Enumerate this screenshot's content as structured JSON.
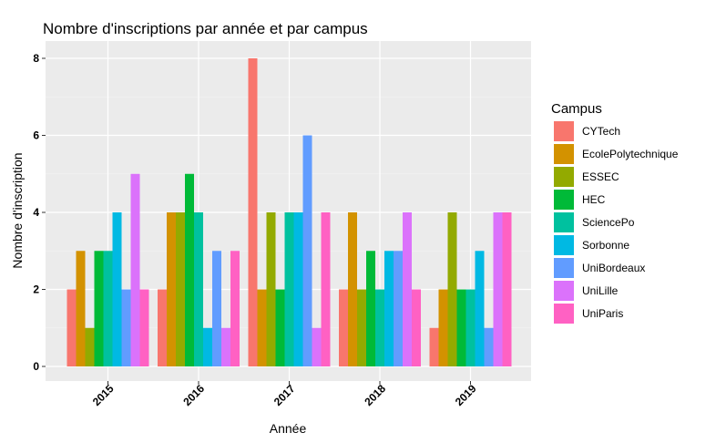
{
  "chart_data": {
    "type": "bar",
    "title": "Nombre d'inscriptions par année et par campus",
    "xlabel": "Année",
    "ylabel": "Nombre d'inscription",
    "categories": [
      "2015",
      "2016",
      "2017",
      "2018",
      "2019"
    ],
    "ylim": [
      0,
      8
    ],
    "yticks": [
      "0",
      "2",
      "4",
      "6",
      "8"
    ],
    "grid": true,
    "legend": {
      "title": "Campus",
      "position": "right"
    },
    "series": [
      {
        "name": "CYTech",
        "color": "#F8766D",
        "values": [
          2,
          2,
          8,
          2,
          1
        ]
      },
      {
        "name": "EcolePolytechnique",
        "color": "#D39200",
        "values": [
          3,
          4,
          2,
          4,
          2
        ]
      },
      {
        "name": "ESSEC",
        "color": "#93AA00",
        "values": [
          1,
          4,
          4,
          2,
          4
        ]
      },
      {
        "name": "HEC",
        "color": "#00BA38",
        "values": [
          3,
          5,
          2,
          3,
          2
        ]
      },
      {
        "name": "SciencePo",
        "color": "#00C19F",
        "values": [
          3,
          4,
          4,
          2,
          2
        ]
      },
      {
        "name": "Sorbonne",
        "color": "#00B9E3",
        "values": [
          4,
          1,
          4,
          3,
          3
        ]
      },
      {
        "name": "UniBordeaux",
        "color": "#619CFF",
        "values": [
          2,
          3,
          6,
          3,
          1
        ]
      },
      {
        "name": "UniLille",
        "color": "#DB72FB",
        "values": [
          5,
          1,
          1,
          4,
          4
        ]
      },
      {
        "name": "UniParis",
        "color": "#FF61C3",
        "values": [
          2,
          3,
          4,
          2,
          4
        ]
      }
    ]
  }
}
